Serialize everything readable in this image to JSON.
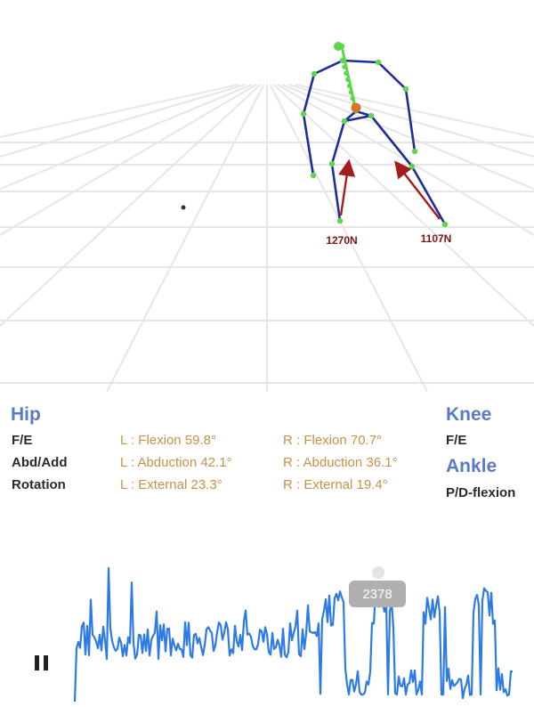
{
  "scene": {
    "force_left": "1270N",
    "force_right": "1107N",
    "colors": {
      "bone": "#1d2e9c",
      "joint": "#5cd64a",
      "pelvis": "#d8742a",
      "force": "#a31d1d",
      "grid": "#e6e6e6"
    }
  },
  "angles": {
    "hip": {
      "title": "Hip",
      "rows": [
        {
          "label": "F/E",
          "left": "L : Flexion 59.8°",
          "right": "R : Flexion 70.7°"
        },
        {
          "label": "Abd/Add",
          "left": "L : Abduction 42.1°",
          "right": "R : Abduction 36.1°"
        },
        {
          "label": "Rotation",
          "left": "L : External 23.3°",
          "right": "R : External 19.4°"
        }
      ]
    },
    "knee": {
      "title": "Knee",
      "label": "F/E"
    },
    "ankle": {
      "title": "Ankle",
      "label": "P/D-flexion"
    },
    "colors": {
      "heading": "#5b7ac6",
      "value": "#c8904a"
    }
  },
  "timeline": {
    "frame": "2378",
    "playback_icon": "pause-icon",
    "color": "#2f7be4"
  }
}
